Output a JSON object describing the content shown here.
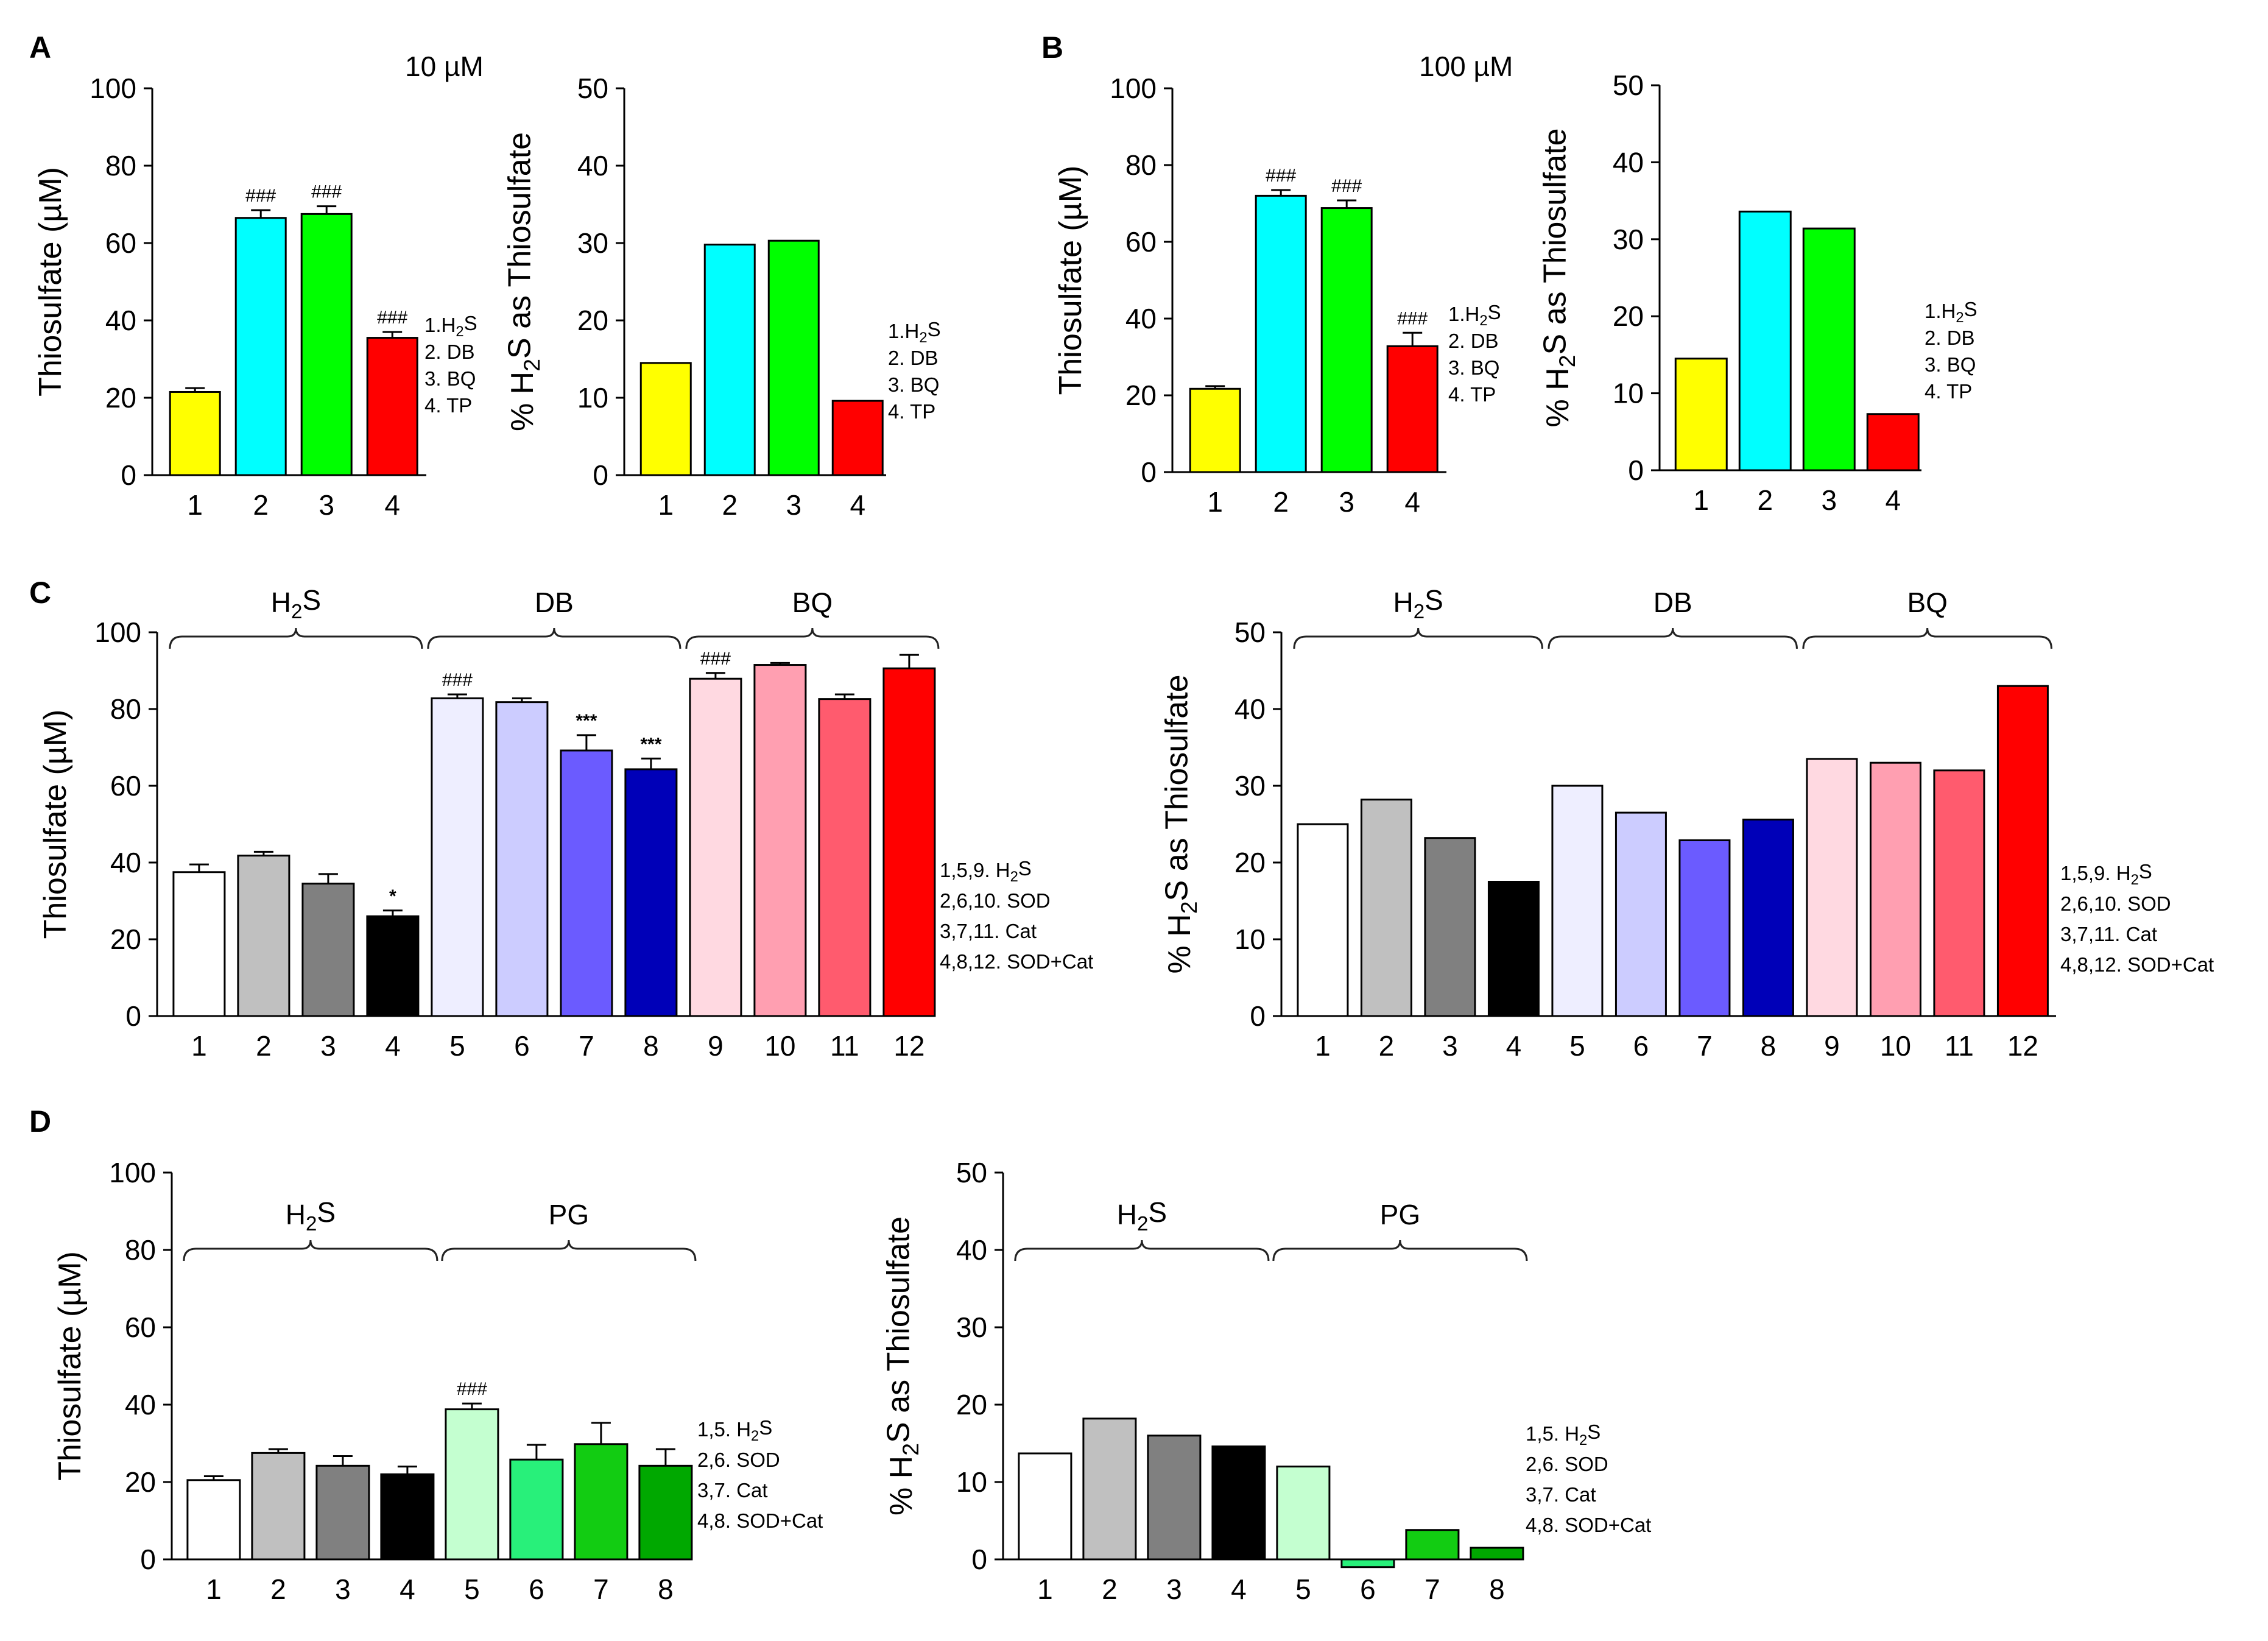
{
  "figure": {
    "panel_letters": [
      "A",
      "B",
      "C",
      "D"
    ],
    "concentrations": {
      "A": "10 µM",
      "B": "100 µM"
    }
  },
  "chart_data": [
    {
      "id": "A1",
      "type": "bar",
      "panel": "A",
      "title": "10 µM",
      "ylabel": "Thiosulfate (µM)",
      "ylim": [
        0,
        100
      ],
      "yticks": [
        0,
        20,
        40,
        60,
        80,
        100
      ],
      "categories": [
        "1",
        "2",
        "3",
        "4"
      ],
      "values": [
        21.5,
        66.5,
        67.5,
        35.5
      ],
      "errors": [
        1,
        2,
        2,
        1.5
      ],
      "significance": [
        "",
        "###",
        "###",
        "###"
      ],
      "colors": [
        "#ffff00",
        "#00ffff",
        "#00ff00",
        "#ff0000"
      ],
      "legend": [
        "1.H2S",
        "2. DB",
        "3. BQ",
        "4. TP"
      ]
    },
    {
      "id": "A2",
      "type": "bar",
      "panel": "A",
      "ylabel": "% H2S as Thiosulfate",
      "ylim": [
        0,
        50
      ],
      "yticks": [
        0,
        10,
        20,
        30,
        40,
        50
      ],
      "categories": [
        "1",
        "2",
        "3",
        "4"
      ],
      "values": [
        14.5,
        29.8,
        30.3,
        9.6
      ],
      "errors": [
        0,
        0,
        0,
        0
      ],
      "significance": [
        "",
        "",
        "",
        ""
      ],
      "colors": [
        "#ffff00",
        "#00ffff",
        "#00ff00",
        "#ff0000"
      ],
      "legend": [
        "1.H2S",
        "2. DB",
        "3. BQ",
        "4. TP"
      ]
    },
    {
      "id": "B1",
      "type": "bar",
      "panel": "B",
      "title": "100 µM",
      "ylabel": "Thiosulfate (µM)",
      "ylim": [
        0,
        100
      ],
      "yticks": [
        0,
        20,
        40,
        60,
        80,
        100
      ],
      "categories": [
        "1",
        "2",
        "3",
        "4"
      ],
      "values": [
        21.7,
        72,
        68.8,
        32.8
      ],
      "errors": [
        0.7,
        1.5,
        2,
        3.5
      ],
      "significance": [
        "",
        "###",
        "###",
        "###"
      ],
      "colors": [
        "#ffff00",
        "#00ffff",
        "#00ff00",
        "#ff0000"
      ],
      "legend": [
        "1.H2S",
        "2. DB",
        "3. BQ",
        "4. TP"
      ]
    },
    {
      "id": "B2",
      "type": "bar",
      "panel": "B",
      "ylabel": "% H2S as Thiosulfate",
      "ylim": [
        0,
        50
      ],
      "yticks": [
        0,
        10,
        20,
        30,
        40,
        50
      ],
      "categories": [
        "1",
        "2",
        "3",
        "4"
      ],
      "values": [
        14.5,
        33.6,
        31.4,
        7.3
      ],
      "errors": [
        0,
        0,
        0,
        0
      ],
      "significance": [
        "",
        "",
        "",
        ""
      ],
      "colors": [
        "#ffff00",
        "#00ffff",
        "#00ff00",
        "#ff0000"
      ],
      "legend": [
        "1.H2S",
        "2. DB",
        "3. BQ",
        "4. TP"
      ]
    },
    {
      "id": "C1",
      "type": "bar",
      "panel": "C",
      "ylabel": "Thiosulfate (µM)",
      "ylim": [
        0,
        100
      ],
      "yticks": [
        0,
        20,
        40,
        60,
        80,
        100
      ],
      "categories": [
        "1",
        "2",
        "3",
        "4",
        "5",
        "6",
        "7",
        "8",
        "9",
        "10",
        "11",
        "12"
      ],
      "values": [
        37.5,
        41.8,
        34.5,
        26,
        82.8,
        81.8,
        69.2,
        64.3,
        87.9,
        91.5,
        82.6,
        90.6
      ],
      "errors": [
        2,
        1,
        2.5,
        1.5,
        1,
        1,
        4,
        2.8,
        1.5,
        0.5,
        1.2,
        3.5
      ],
      "significance": [
        "",
        "",
        "",
        "*",
        "###",
        "",
        "***",
        "***",
        "###",
        "",
        "",
        ""
      ],
      "colors": [
        "#ffffff",
        "#c0c0c0",
        "#808080",
        "#000000",
        "#eeeeff",
        "#ccccff",
        "#6b5bff",
        "#0000b8",
        "#ffd9e1",
        "#ff9fb1",
        "#ff5b6e",
        "#ff0000"
      ],
      "groups": [
        {
          "label": "H2S",
          "from": 1,
          "to": 4
        },
        {
          "label": "DB",
          "from": 5,
          "to": 8
        },
        {
          "label": "BQ",
          "from": 9,
          "to": 12
        }
      ],
      "legend": [
        "1,5,9. H2S",
        "2,6,10. SOD",
        "3,7,11. Cat",
        "4,8,12. SOD+Cat"
      ]
    },
    {
      "id": "C2",
      "type": "bar",
      "panel": "C",
      "ylabel": "% H2S as Thiosulfate",
      "ylim": [
        0,
        50
      ],
      "yticks": [
        0,
        10,
        20,
        30,
        40,
        50
      ],
      "categories": [
        "1",
        "2",
        "3",
        "4",
        "5",
        "6",
        "7",
        "8",
        "9",
        "10",
        "11",
        "12"
      ],
      "values": [
        25,
        28.2,
        23.2,
        17.5,
        30,
        26.5,
        22.9,
        25.6,
        33.5,
        33,
        32,
        43
      ],
      "errors": [
        0,
        0,
        0,
        0,
        0,
        0,
        0,
        0,
        0,
        0,
        0,
        0
      ],
      "significance": [
        "",
        "",
        "",
        "",
        "",
        "",
        "",
        "",
        "",
        "",
        "",
        ""
      ],
      "colors": [
        "#ffffff",
        "#c0c0c0",
        "#808080",
        "#000000",
        "#eeeeff",
        "#ccccff",
        "#6b5bff",
        "#0000b8",
        "#ffd9e1",
        "#ff9fb1",
        "#ff5b6e",
        "#ff0000"
      ],
      "groups": [
        {
          "label": "H2S",
          "from": 1,
          "to": 4
        },
        {
          "label": "DB",
          "from": 5,
          "to": 8
        },
        {
          "label": "BQ",
          "from": 9,
          "to": 12
        }
      ],
      "legend": [
        "1,5,9. H2S",
        "2,6,10. SOD",
        "3,7,11. Cat",
        "4,8,12. SOD+Cat"
      ]
    },
    {
      "id": "D1",
      "type": "bar",
      "panel": "D",
      "ylabel": "Thiosulfate (µM)",
      "ylim": [
        0,
        100
      ],
      "yticks": [
        0,
        20,
        40,
        60,
        80,
        100
      ],
      "categories": [
        "1",
        "2",
        "3",
        "4",
        "5",
        "6",
        "7",
        "8"
      ],
      "values": [
        20.5,
        27.5,
        24.2,
        22,
        38.8,
        25.8,
        29.8,
        24.2
      ],
      "errors": [
        1,
        1,
        2.5,
        2,
        1.5,
        3.8,
        5.5,
        4.3
      ],
      "significance": [
        "",
        "",
        "",
        "",
        "###",
        "",
        "",
        ""
      ],
      "colors": [
        "#ffffff",
        "#c0c0c0",
        "#808080",
        "#000000",
        "#c4ffd0",
        "#28f07a",
        "#12cc12",
        "#00a800"
      ],
      "groups": [
        {
          "label": "H2S",
          "from": 1,
          "to": 4
        },
        {
          "label": "PG",
          "from": 5,
          "to": 8
        }
      ],
      "legend": [
        "1,5. H2S",
        "2,6. SOD",
        "3,7. Cat",
        "4,8. SOD+Cat"
      ]
    },
    {
      "id": "D2",
      "type": "bar",
      "panel": "D",
      "ylabel": "% H2S as Thiosulfate",
      "ylim": [
        0,
        50
      ],
      "yticks": [
        0,
        10,
        20,
        30,
        40,
        50
      ],
      "categories": [
        "1",
        "2",
        "3",
        "4",
        "5",
        "6",
        "7",
        "8"
      ],
      "values": [
        13.7,
        18.2,
        16,
        14.6,
        12,
        -1,
        3.8,
        1.5
      ],
      "errors": [
        0,
        0,
        0,
        0,
        0,
        0,
        0,
        0
      ],
      "significance": [
        "",
        "",
        "",
        "",
        "",
        "",
        "",
        ""
      ],
      "colors": [
        "#ffffff",
        "#c0c0c0",
        "#808080",
        "#000000",
        "#c4ffd0",
        "#28f07a",
        "#12cc12",
        "#00a800"
      ],
      "groups": [
        {
          "label": "H2S",
          "from": 1,
          "to": 4
        },
        {
          "label": "PG",
          "from": 5,
          "to": 8
        }
      ],
      "legend": [
        "1,5. H2S",
        "2,6. SOD",
        "3,7. Cat",
        "4,8. SOD+Cat"
      ]
    }
  ]
}
